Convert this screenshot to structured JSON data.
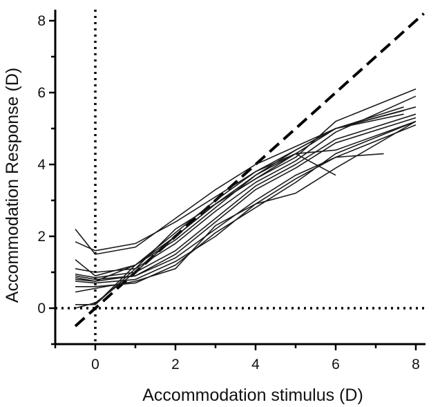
{
  "chart_data": {
    "type": "line",
    "title": "",
    "xlabel": "Accommodation stimulus (D)",
    "ylabel": "Accommodation Response (D)",
    "xlim": [
      -1,
      8.3
    ],
    "ylim": [
      -1,
      8.3
    ],
    "xticks": [
      0,
      2,
      4,
      6,
      8
    ],
    "yticks": [
      0,
      2,
      4,
      6,
      8
    ],
    "grid": false,
    "legend": "none",
    "reference_lines": [
      {
        "kind": "identity",
        "style": "dashed",
        "from": [
          -0.5,
          -0.5
        ],
        "to": [
          8.2,
          8.2
        ]
      },
      {
        "kind": "vertical",
        "style": "dotted",
        "x": 0
      },
      {
        "kind": "horizontal",
        "style": "dotted",
        "y": 0
      }
    ],
    "series": [
      {
        "x": [
          -0.5,
          0,
          1,
          2,
          3,
          4,
          5,
          6,
          7.7
        ],
        "values": [
          2.2,
          1.5,
          1.7,
          2.5,
          3.3,
          4.0,
          4.5,
          5.0,
          5.5
        ]
      },
      {
        "x": [
          -0.5,
          0,
          1,
          2,
          3,
          4,
          5,
          6,
          7.7
        ],
        "values": [
          1.85,
          1.6,
          1.8,
          2.4,
          3.1,
          3.8,
          4.4,
          5.0,
          5.6
        ]
      },
      {
        "x": [
          -0.5,
          0,
          1,
          2,
          3,
          4,
          5,
          6,
          8
        ],
        "values": [
          1.35,
          0.9,
          1.2,
          2.0,
          2.9,
          3.6,
          4.2,
          5.2,
          6.1
        ]
      },
      {
        "x": [
          -0.5,
          0,
          1,
          2,
          3,
          4,
          5,
          6,
          8
        ],
        "values": [
          1.1,
          1.0,
          1.1,
          1.8,
          2.7,
          3.5,
          4.1,
          4.9,
          5.9
        ]
      },
      {
        "x": [
          -0.5,
          0,
          1,
          2,
          3,
          4,
          5,
          6,
          8
        ],
        "values": [
          0.95,
          0.85,
          1.0,
          1.6,
          2.5,
          3.4,
          4.0,
          4.7,
          5.4
        ]
      },
      {
        "x": [
          -0.5,
          0,
          1,
          2,
          3,
          4,
          5,
          6,
          8
        ],
        "values": [
          0.9,
          0.8,
          0.9,
          1.5,
          2.4,
          3.3,
          3.9,
          4.6,
          5.3
        ]
      },
      {
        "x": [
          -0.5,
          0,
          1,
          2,
          3,
          4,
          5,
          6,
          8
        ],
        "values": [
          0.85,
          0.75,
          1.2,
          1.9,
          2.8,
          3.7,
          4.3,
          4.4,
          5.2
        ]
      },
      {
        "x": [
          -0.5,
          0,
          1,
          2,
          3,
          4,
          5,
          6,
          8
        ],
        "values": [
          0.8,
          0.75,
          0.9,
          1.4,
          2.2,
          3.0,
          3.7,
          4.2,
          5.1
        ]
      },
      {
        "x": [
          -0.5,
          0,
          1,
          2,
          3,
          4,
          5,
          6,
          7.2
        ],
        "values": [
          0.75,
          0.7,
          0.8,
          1.3,
          2.0,
          2.9,
          3.6,
          4.2,
          4.3
        ]
      },
      {
        "x": [
          -0.5,
          0,
          1,
          2,
          3,
          4,
          5,
          6,
          8
        ],
        "values": [
          0.6,
          0.6,
          0.7,
          1.2,
          2.1,
          2.8,
          3.5,
          4.3,
          5.2
        ]
      },
      {
        "x": [
          -0.5,
          0,
          1,
          2,
          3,
          4,
          5,
          6,
          8
        ],
        "values": [
          0.45,
          0.55,
          0.75,
          1.1,
          2.3,
          2.9,
          3.2,
          3.9,
          5.2
        ]
      },
      {
        "x": [
          -0.5,
          0,
          1,
          2,
          3,
          4,
          5,
          6,
          7.7
        ],
        "values": [
          0.1,
          0.1,
          1.1,
          2.2,
          2.9,
          3.6,
          4.3,
          5.0,
          5.4
        ]
      },
      {
        "x": [
          -0.5,
          0,
          1,
          2,
          3,
          4,
          5,
          6,
          8
        ],
        "values": [
          0.0,
          0.15,
          1.0,
          2.0,
          2.9,
          3.7,
          4.4,
          5.0,
          5.6
        ]
      },
      {
        "x": [
          0,
          1,
          2,
          3,
          4,
          5,
          6
        ],
        "values": [
          0.1,
          1.2,
          2.1,
          3.0,
          3.8,
          4.3,
          3.7
        ]
      }
    ]
  }
}
